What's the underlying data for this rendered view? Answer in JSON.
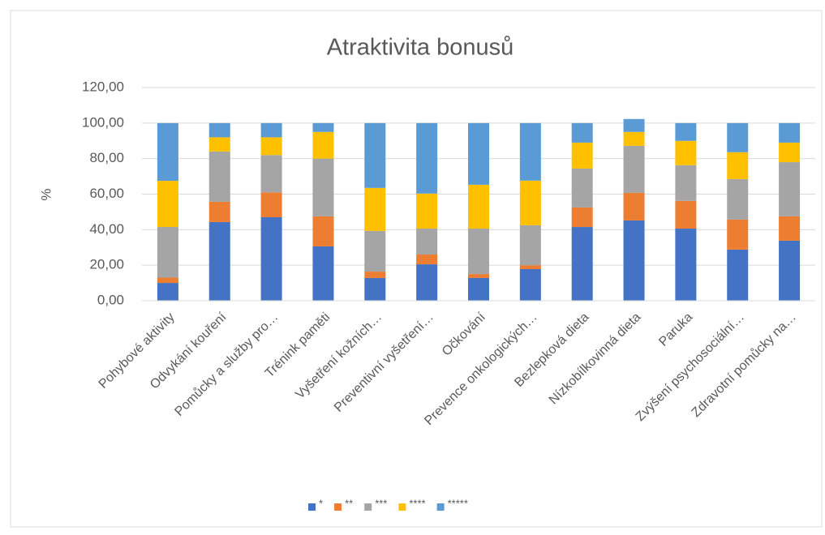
{
  "chart_data": {
    "type": "stacked-bar",
    "title": "Atraktivita bonusů",
    "y_label": "%",
    "categories": [
      "Pohybové aktivity",
      "Odvykání kouření",
      "Pomůcky a služby pro…",
      "Trénink paměti",
      "Vyšetření kožních…",
      "Preventivní vyšetření…",
      "Očkování",
      "Prevence onkologických…",
      "Bezlepková dieta",
      "Nízkobílkovinná dieta",
      "Paruka",
      "Zvýšení psychosociální…",
      "Zdravotní pomůcky na…"
    ],
    "series": [
      {
        "name": "*",
        "color": "#4472c4",
        "values": [
          10,
          44.3,
          47,
          30.6,
          12.8,
          20.5,
          12.8,
          17.8,
          41.5,
          45.2,
          40.6,
          28.8,
          33.8
        ]
      },
      {
        "name": "**",
        "color": "#ed7d31",
        "values": [
          3,
          11.4,
          14,
          16.9,
          3.6,
          5.5,
          2.2,
          2.2,
          11,
          15.5,
          15.6,
          16.9,
          13.7
        ]
      },
      {
        "name": "***",
        "color": "#a5a5a5",
        "values": [
          28.5,
          28.3,
          21,
          32.5,
          22.9,
          14.6,
          25.6,
          22.5,
          21.9,
          26.5,
          20.1,
          22.8,
          30.5
        ]
      },
      {
        "name": "****",
        "color": "#ffc000",
        "values": [
          26,
          8,
          10,
          15,
          24.2,
          19.7,
          24.7,
          25.1,
          14.6,
          7.8,
          13.7,
          15.1,
          11
        ]
      },
      {
        "name": "*****",
        "color": "#5b9bd5",
        "values": [
          32.5,
          8,
          8,
          5,
          36.5,
          39.7,
          34.7,
          32.4,
          11,
          7.3,
          10,
          16.4,
          11
        ]
      }
    ],
    "ylim": [
      0,
      120
    ],
    "yticks": [
      {
        "value": 0,
        "label": "0,00"
      },
      {
        "value": 20,
        "label": "20,00"
      },
      {
        "value": 40,
        "label": "40,00"
      },
      {
        "value": 60,
        "label": "60,00"
      },
      {
        "value": 80,
        "label": "80,00"
      },
      {
        "value": 100,
        "label": "100,00"
      },
      {
        "value": 120,
        "label": "120,00"
      }
    ],
    "grid": true,
    "legend": "bottom"
  }
}
